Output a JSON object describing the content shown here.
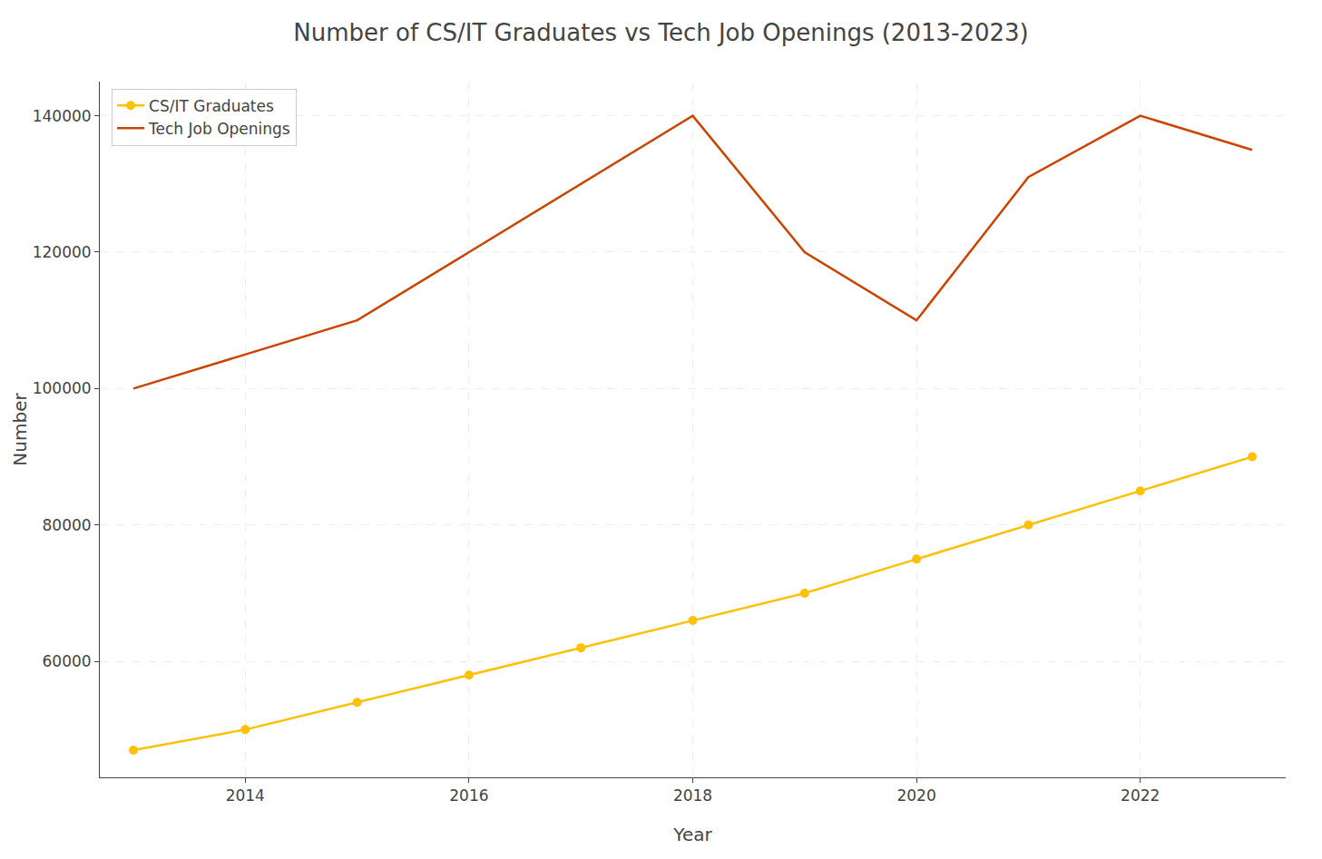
{
  "chart_data": {
    "type": "line",
    "title": "Number of CS/IT Graduates vs Tech Job Openings (2013-2023)",
    "xlabel": "Year",
    "ylabel": "Number",
    "x": [
      2013,
      2014,
      2015,
      2016,
      2017,
      2018,
      2019,
      2020,
      2021,
      2022,
      2023
    ],
    "series": [
      {
        "name": "CS/IT Graduates",
        "color": "#FFC107",
        "marker": "circle",
        "values": [
          47000,
          50000,
          54000,
          58000,
          62000,
          66000,
          70000,
          75000,
          80000,
          85000,
          90000
        ]
      },
      {
        "name": "Tech Job Openings",
        "color": "#CC4400",
        "values": [
          100000,
          105000,
          110000,
          120000,
          130000,
          140000,
          120000,
          110000,
          131000,
          140000,
          135000
        ]
      }
    ],
    "xlim": [
      2012.7,
      2023.3
    ],
    "xticks": [
      2014,
      2016,
      2018,
      2020,
      2022
    ],
    "ylim": [
      43000,
      145000
    ],
    "yticks": [
      60000,
      80000,
      100000,
      120000,
      140000
    ],
    "grid": true,
    "legend": "upper left"
  }
}
